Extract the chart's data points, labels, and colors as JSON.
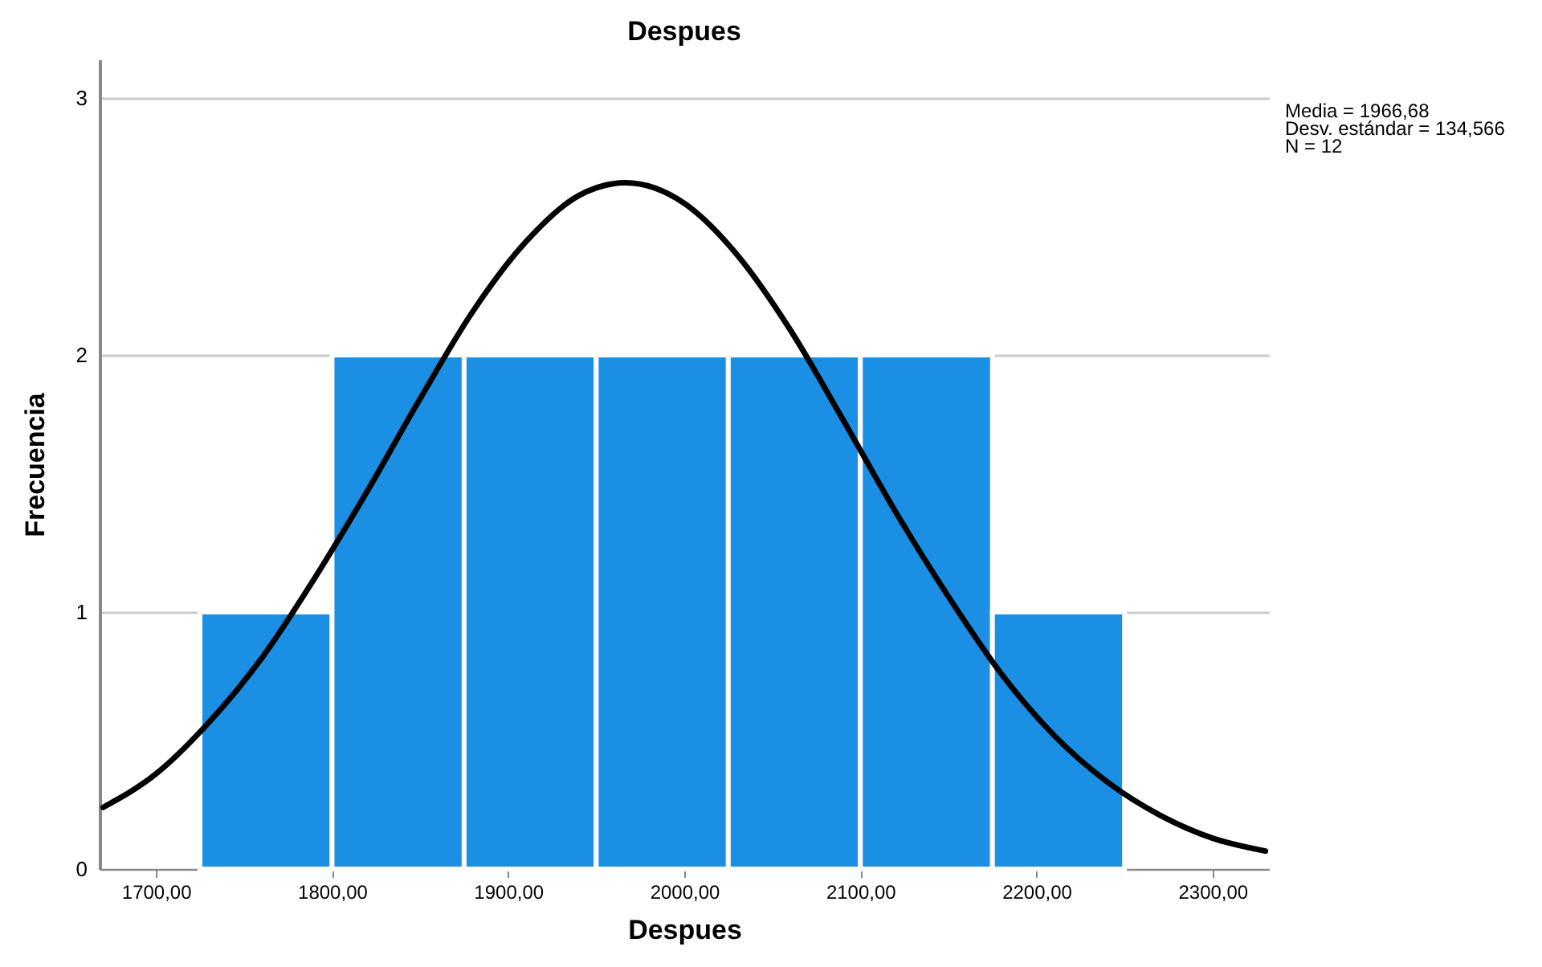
{
  "chart_data": {
    "type": "histogram",
    "title": "Despues",
    "xlabel": "Despues",
    "ylabel": "Frecuencia",
    "bins": [
      1725,
      1800,
      1875,
      1950,
      2025,
      2100,
      2175,
      2250
    ],
    "values": [
      1,
      2,
      2,
      2,
      2,
      2,
      1
    ],
    "color": "#1a8fe3",
    "series": [
      {
        "type": "line",
        "color": "#000000",
        "x": [
          1670,
          1700,
          1730,
          1760,
          1790,
          1820,
          1850,
          1880,
          1910,
          1940,
          1966.68,
          2000,
          2030,
          2060,
          2090,
          2120,
          2150,
          2180,
          2210,
          2240,
          2270,
          2300,
          2330
        ],
        "values": [
          0.24,
          0.37,
          0.57,
          0.82,
          1.13,
          1.47,
          1.83,
          2.17,
          2.44,
          2.62,
          2.67,
          2.59,
          2.39,
          2.1,
          1.75,
          1.39,
          1.06,
          0.76,
          0.52,
          0.34,
          0.21,
          0.12,
          0.07
        ]
      }
    ],
    "xlim": [
      1668,
      2332
    ],
    "xticks": [
      {
        "value": 1700,
        "label": "1700,00"
      },
      {
        "value": 1800,
        "label": "1800,00"
      },
      {
        "value": 1900,
        "label": "1900,00"
      },
      {
        "value": 2000,
        "label": "2000,00"
      },
      {
        "value": 2100,
        "label": "2100,00"
      },
      {
        "value": 2200,
        "label": "2200,00"
      },
      {
        "value": 2300,
        "label": "2300,00"
      }
    ],
    "ylim": [
      0,
      3.15
    ],
    "yticks": [
      0,
      1,
      2,
      3
    ],
    "grid": "y",
    "line_style": "solid",
    "marker": "none",
    "annotations": [
      "Media = 1966,68",
      "Desv. estándar = 134,566",
      "N = 12"
    ]
  }
}
